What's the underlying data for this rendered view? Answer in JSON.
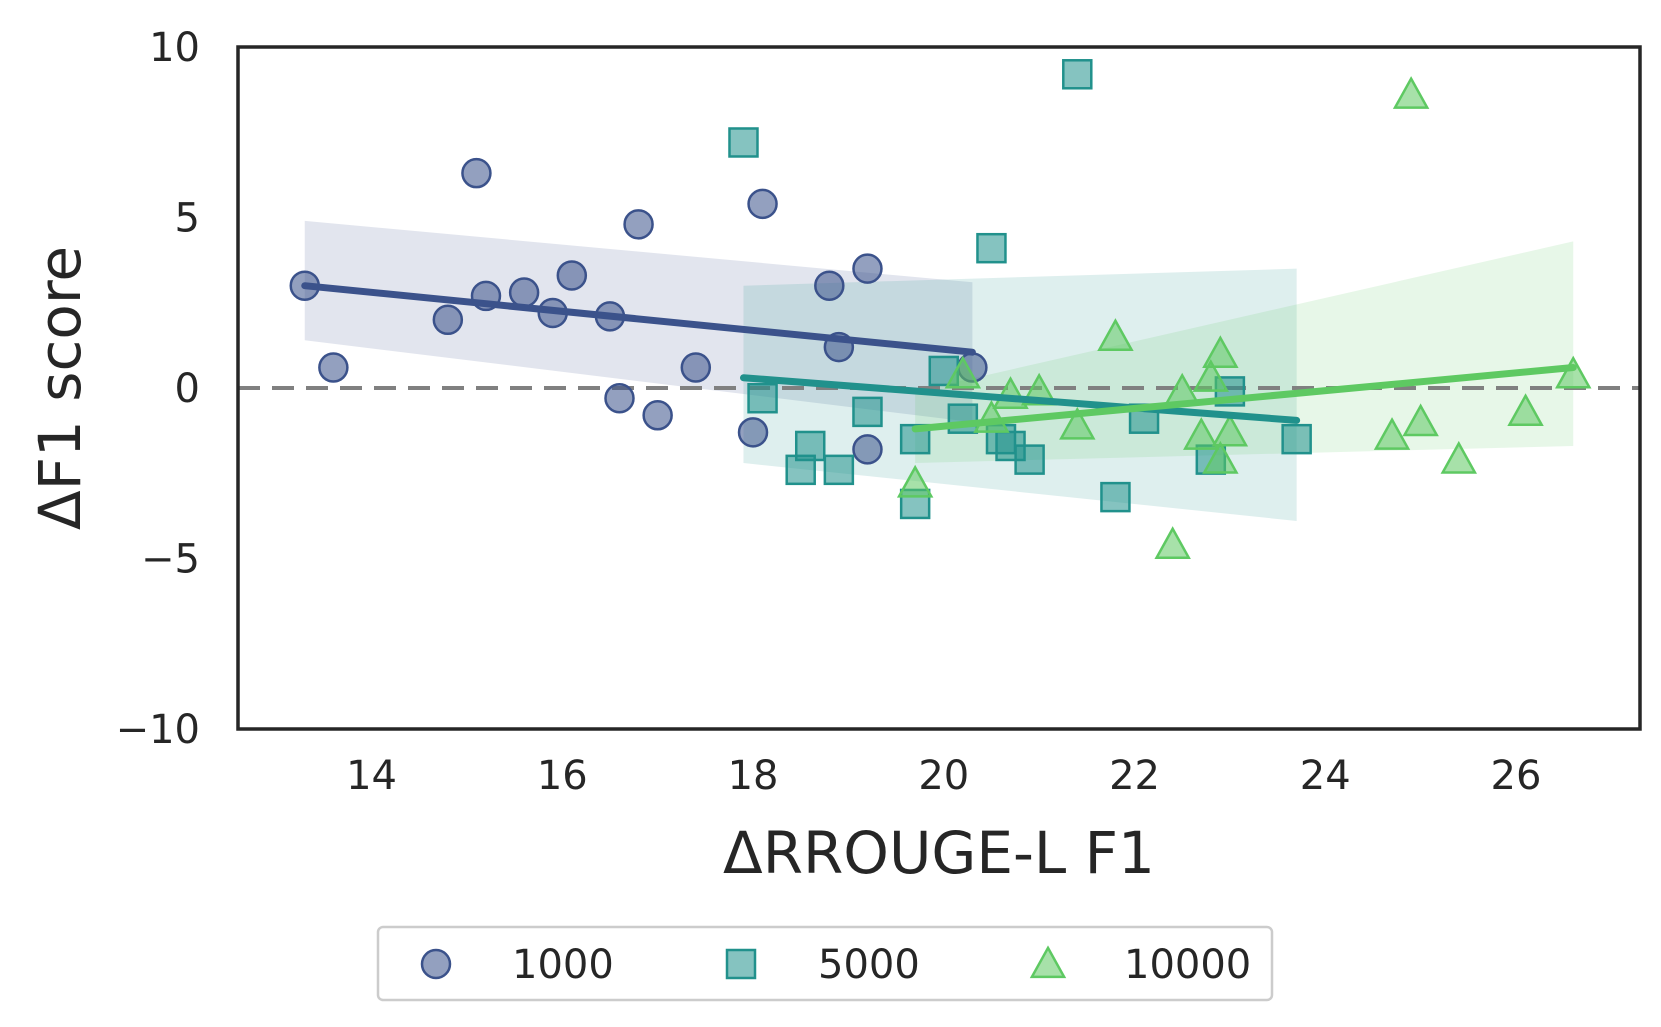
{
  "chart_data": {
    "type": "scatter",
    "title": "",
    "xlabel": "ΔRROUGE-L F1",
    "ylabel": "ΔF1 score",
    "xlim": [
      12.6,
      27.3
    ],
    "ylim": [
      -10,
      10
    ],
    "xticks": [
      14,
      16,
      18,
      20,
      22,
      24,
      26
    ],
    "xtick_labels": [
      "14",
      "16",
      "18",
      "20",
      "22",
      "24",
      "26"
    ],
    "yticks": [
      10,
      5,
      0,
      -5,
      -10
    ],
    "ytick_labels": [
      "10",
      "5",
      "0",
      "−5",
      "−10"
    ],
    "reference_line": {
      "y": 0,
      "style": "dashed",
      "color": "#808080"
    },
    "grid": false,
    "legend_position": "bottom-center",
    "series": [
      {
        "name": "1000",
        "marker": "circle",
        "color": "#3b528b",
        "regression": {
          "x": [
            13.3,
            20.3
          ],
          "y": [
            3.0,
            1.05
          ]
        },
        "ci_band": {
          "x": [
            13.3,
            20.3
          ],
          "lower": [
            1.4,
            -1.0
          ],
          "upper": [
            4.9,
            3.1
          ]
        },
        "points": [
          {
            "x": 13.3,
            "y": 3.0
          },
          {
            "x": 13.6,
            "y": 0.6
          },
          {
            "x": 14.8,
            "y": 2.0
          },
          {
            "x": 15.1,
            "y": 6.3
          },
          {
            "x": 15.2,
            "y": 2.7
          },
          {
            "x": 15.6,
            "y": 2.8
          },
          {
            "x": 15.9,
            "y": 2.2
          },
          {
            "x": 16.1,
            "y": 3.3
          },
          {
            "x": 16.5,
            "y": 2.1
          },
          {
            "x": 16.6,
            "y": -0.3
          },
          {
            "x": 16.8,
            "y": 4.8
          },
          {
            "x": 17.0,
            "y": -0.8
          },
          {
            "x": 17.4,
            "y": 0.6
          },
          {
            "x": 18.0,
            "y": -1.3
          },
          {
            "x": 18.1,
            "y": 5.4
          },
          {
            "x": 18.8,
            "y": 3.0
          },
          {
            "x": 18.9,
            "y": 1.2
          },
          {
            "x": 19.2,
            "y": 3.5
          },
          {
            "x": 19.2,
            "y": -1.8
          },
          {
            "x": 20.3,
            "y": 0.6
          }
        ]
      },
      {
        "name": "5000",
        "marker": "square",
        "color": "#21918c",
        "regression": {
          "x": [
            17.9,
            23.7
          ],
          "y": [
            0.3,
            -0.95
          ]
        },
        "ci_band": {
          "x": [
            17.9,
            23.7
          ],
          "lower": [
            -2.2,
            -3.9
          ],
          "upper": [
            3.0,
            3.5
          ]
        },
        "points": [
          {
            "x": 17.9,
            "y": 7.2
          },
          {
            "x": 18.1,
            "y": -0.3
          },
          {
            "x": 18.5,
            "y": -2.4
          },
          {
            "x": 18.6,
            "y": -1.7
          },
          {
            "x": 18.9,
            "y": -2.4
          },
          {
            "x": 19.2,
            "y": -0.7
          },
          {
            "x": 19.7,
            "y": -1.5
          },
          {
            "x": 19.7,
            "y": -3.4
          },
          {
            "x": 20.0,
            "y": 0.5
          },
          {
            "x": 20.2,
            "y": -0.9
          },
          {
            "x": 20.5,
            "y": 4.1
          },
          {
            "x": 20.6,
            "y": -1.5
          },
          {
            "x": 20.7,
            "y": -1.7
          },
          {
            "x": 20.9,
            "y": -2.1
          },
          {
            "x": 21.4,
            "y": 9.2
          },
          {
            "x": 21.8,
            "y": -3.2
          },
          {
            "x": 22.1,
            "y": -0.9
          },
          {
            "x": 22.8,
            "y": -2.1
          },
          {
            "x": 23.0,
            "y": -0.1
          },
          {
            "x": 23.7,
            "y": -1.5
          }
        ]
      },
      {
        "name": "10000",
        "marker": "triangle",
        "color": "#5ec962",
        "regression": {
          "x": [
            19.7,
            26.6
          ],
          "y": [
            -1.2,
            0.6
          ]
        },
        "ci_band": {
          "x": [
            19.7,
            26.6
          ],
          "lower": [
            -2.2,
            -1.7
          ],
          "upper": [
            -0.1,
            4.3
          ]
        },
        "points": [
          {
            "x": 19.7,
            "y": -2.8
          },
          {
            "x": 20.2,
            "y": 0.4
          },
          {
            "x": 20.5,
            "y": -0.9
          },
          {
            "x": 20.7,
            "y": -0.2
          },
          {
            "x": 21.0,
            "y": -0.1
          },
          {
            "x": 21.4,
            "y": -1.1
          },
          {
            "x": 21.8,
            "y": 1.5
          },
          {
            "x": 22.4,
            "y": -4.6
          },
          {
            "x": 22.5,
            "y": -0.1
          },
          {
            "x": 22.7,
            "y": -1.4
          },
          {
            "x": 22.8,
            "y": 0.3
          },
          {
            "x": 22.9,
            "y": 1.0
          },
          {
            "x": 22.9,
            "y": -2.1
          },
          {
            "x": 23.0,
            "y": -1.3
          },
          {
            "x": 24.7,
            "y": -1.4
          },
          {
            "x": 24.9,
            "y": 8.6
          },
          {
            "x": 25.0,
            "y": -1.0
          },
          {
            "x": 25.4,
            "y": -2.1
          },
          {
            "x": 26.1,
            "y": -0.7
          },
          {
            "x": 26.6,
            "y": 0.4
          }
        ]
      }
    ]
  }
}
